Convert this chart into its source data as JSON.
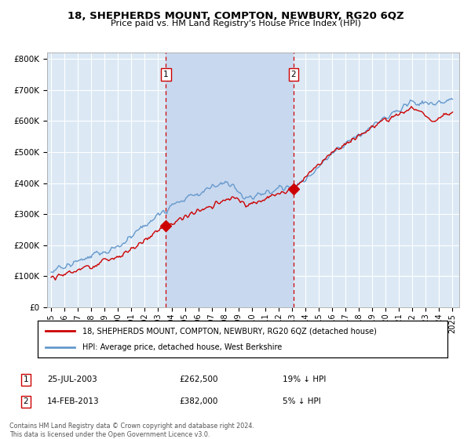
{
  "title": "18, SHEPHERDS MOUNT, COMPTON, NEWBURY, RG20 6QZ",
  "subtitle": "Price paid vs. HM Land Registry's House Price Index (HPI)",
  "legend_line1": "18, SHEPHERDS MOUNT, COMPTON, NEWBURY, RG20 6QZ (detached house)",
  "legend_line2": "HPI: Average price, detached house, West Berkshire",
  "footnote": "Contains HM Land Registry data © Crown copyright and database right 2024.\nThis data is licensed under the Open Government Licence v3.0.",
  "ylim": [
    0,
    820000
  ],
  "yticks": [
    0,
    100000,
    200000,
    300000,
    400000,
    500000,
    600000,
    700000,
    800000
  ],
  "ytick_labels": [
    "£0",
    "£100K",
    "£200K",
    "£300K",
    "£400K",
    "£500K",
    "£600K",
    "£700K",
    "£800K"
  ],
  "background_color": "#dce9f5",
  "grid_color": "#ffffff",
  "red_color": "#cc0000",
  "blue_color": "#6699cc",
  "shade_color": "#c8d8ee",
  "vline_color": "#cc0000",
  "marker1_x": 2003.57,
  "marker1_y": 262500,
  "marker2_x": 2013.12,
  "marker2_y": 382000,
  "xmin": 1994.7,
  "xmax": 2025.5,
  "ann_data": [
    [
      "1",
      "25-JUL-2003",
      "£262,500",
      "19% ↓ HPI"
    ],
    [
      "2",
      "14-FEB-2013",
      "£382,000",
      "5% ↓ HPI"
    ]
  ]
}
